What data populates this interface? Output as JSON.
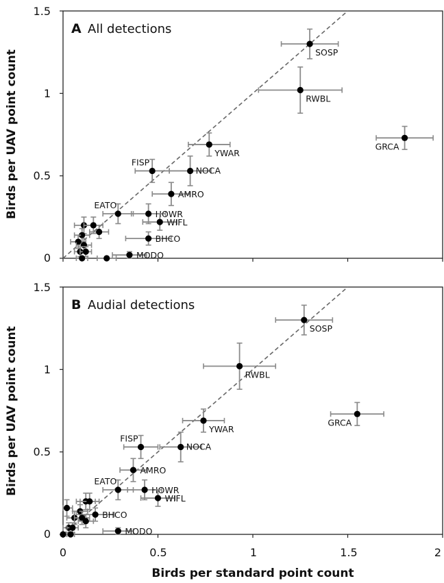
{
  "chart_data": [
    {
      "type": "scatter",
      "panel": "A",
      "title": "All detections",
      "xlabel": "",
      "ylabel": "Birds per UAV point count",
      "xlim": [
        0,
        2
      ],
      "ylim": [
        0,
        1.5
      ],
      "x_ticks": [],
      "y_ticks": [
        "0",
        "0.5",
        "1",
        "1.5"
      ],
      "reference_line": "1:1 dashed",
      "points": [
        {
          "label": "SOSP",
          "x": 1.3,
          "y": 1.3,
          "xerr": 0.15,
          "yerr": 0.09
        },
        {
          "label": "RWBL",
          "x": 1.25,
          "y": 1.02,
          "xerr": 0.22,
          "yerr": 0.14
        },
        {
          "label": "GRCA",
          "x": 1.8,
          "y": 0.73,
          "xerr": 0.15,
          "yerr": 0.07
        },
        {
          "label": "YWAR",
          "x": 0.77,
          "y": 0.69,
          "xerr": 0.11,
          "yerr": 0.07
        },
        {
          "label": "FISP",
          "x": 0.47,
          "y": 0.53,
          "xerr": 0.09,
          "yerr": 0.07
        },
        {
          "label": "NOCA",
          "x": 0.67,
          "y": 0.53,
          "xerr": 0.11,
          "yerr": 0.09
        },
        {
          "label": "AMRO",
          "x": 0.57,
          "y": 0.39,
          "xerr": 0.1,
          "yerr": 0.07
        },
        {
          "label": "EATO",
          "x": 0.29,
          "y": 0.27,
          "xerr": 0.08,
          "yerr": 0.06
        },
        {
          "label": "HOWR",
          "x": 0.45,
          "y": 0.27,
          "xerr": 0.09,
          "yerr": 0.06
        },
        {
          "label": "WIFL",
          "x": 0.51,
          "y": 0.22,
          "xerr": 0.09,
          "yerr": 0.05
        },
        {
          "label": "BHCO",
          "x": 0.45,
          "y": 0.12,
          "xerr": 0.12,
          "yerr": 0.04
        },
        {
          "label": "MODO",
          "x": 0.35,
          "y": 0.02,
          "xerr": 0.09,
          "yerr": 0.02
        },
        {
          "label": "",
          "x": 0.11,
          "y": 0.2,
          "xerr": 0.05,
          "yerr": 0.05
        },
        {
          "label": "",
          "x": 0.16,
          "y": 0.2,
          "xerr": 0.05,
          "yerr": 0.05
        },
        {
          "label": "",
          "x": 0.19,
          "y": 0.16,
          "xerr": 0.05,
          "yerr": 0.04
        },
        {
          "label": "",
          "x": 0.1,
          "y": 0.14,
          "xerr": 0.04,
          "yerr": 0.04
        },
        {
          "label": "",
          "x": 0.08,
          "y": 0.1,
          "xerr": 0.04,
          "yerr": 0.04
        },
        {
          "label": "",
          "x": 0.11,
          "y": 0.08,
          "xerr": 0.04,
          "yerr": 0.04
        },
        {
          "label": "",
          "x": 0.09,
          "y": 0.04,
          "xerr": 0.03,
          "yerr": 0.03
        },
        {
          "label": "",
          "x": 0.12,
          "y": 0.04,
          "xerr": 0.03,
          "yerr": 0.03
        },
        {
          "label": "",
          "x": 0.1,
          "y": 0.0,
          "xerr": 0.03,
          "yerr": 0.0
        },
        {
          "label": "",
          "x": 0.23,
          "y": 0.0,
          "xerr": 0.05,
          "yerr": 0.0
        }
      ]
    },
    {
      "type": "scatter",
      "panel": "B",
      "title": "Audial detections",
      "xlabel": "Birds per standard point count",
      "ylabel": "Birds per UAV point count",
      "xlim": [
        0,
        2
      ],
      "ylim": [
        0,
        1.5
      ],
      "x_ticks": [
        "0",
        "0.5",
        "1",
        "1.5",
        "2"
      ],
      "y_ticks": [
        "0",
        "0.5",
        "1",
        "1.5"
      ],
      "reference_line": "1:1 dashed",
      "points": [
        {
          "label": "SOSP",
          "x": 1.27,
          "y": 1.3,
          "xerr": 0.15,
          "yerr": 0.09
        },
        {
          "label": "RWBL",
          "x": 0.93,
          "y": 1.02,
          "xerr": 0.19,
          "yerr": 0.14
        },
        {
          "label": "GRCA",
          "x": 1.55,
          "y": 0.73,
          "xerr": 0.14,
          "yerr": 0.07
        },
        {
          "label": "YWAR",
          "x": 0.74,
          "y": 0.69,
          "xerr": 0.11,
          "yerr": 0.07
        },
        {
          "label": "FISP",
          "x": 0.41,
          "y": 0.53,
          "xerr": 0.09,
          "yerr": 0.07
        },
        {
          "label": "NOCA",
          "x": 0.62,
          "y": 0.53,
          "xerr": 0.11,
          "yerr": 0.09
        },
        {
          "label": "AMRO",
          "x": 0.37,
          "y": 0.39,
          "xerr": 0.07,
          "yerr": 0.07
        },
        {
          "label": "EATO",
          "x": 0.29,
          "y": 0.27,
          "xerr": 0.08,
          "yerr": 0.06
        },
        {
          "label": "HOWR",
          "x": 0.43,
          "y": 0.27,
          "xerr": 0.09,
          "yerr": 0.06
        },
        {
          "label": "WIFL",
          "x": 0.5,
          "y": 0.22,
          "xerr": 0.09,
          "yerr": 0.05
        },
        {
          "label": "BHCO",
          "x": 0.17,
          "y": 0.12,
          "xerr": 0.1,
          "yerr": 0.04
        },
        {
          "label": "MODO",
          "x": 0.29,
          "y": 0.02,
          "xerr": 0.08,
          "yerr": 0.02
        },
        {
          "label": "",
          "x": 0.02,
          "y": 0.16,
          "xerr": 0.03,
          "yerr": 0.05
        },
        {
          "label": "",
          "x": 0.12,
          "y": 0.2,
          "xerr": 0.05,
          "yerr": 0.05
        },
        {
          "label": "",
          "x": 0.14,
          "y": 0.2,
          "xerr": 0.05,
          "yerr": 0.05
        },
        {
          "label": "",
          "x": 0.09,
          "y": 0.14,
          "xerr": 0.04,
          "yerr": 0.04
        },
        {
          "label": "",
          "x": 0.06,
          "y": 0.1,
          "xerr": 0.04,
          "yerr": 0.04
        },
        {
          "label": "",
          "x": 0.1,
          "y": 0.1,
          "xerr": 0.04,
          "yerr": 0.04
        },
        {
          "label": "",
          "x": 0.12,
          "y": 0.08,
          "xerr": 0.04,
          "yerr": 0.04
        },
        {
          "label": "",
          "x": 0.03,
          "y": 0.04,
          "xerr": 0.03,
          "yerr": 0.03
        },
        {
          "label": "",
          "x": 0.05,
          "y": 0.04,
          "xerr": 0.03,
          "yerr": 0.03
        },
        {
          "label": "",
          "x": 0.0,
          "y": 0.0,
          "xerr": 0.02,
          "yerr": 0.0
        },
        {
          "label": "",
          "x": 0.04,
          "y": 0.0,
          "xerr": 0.02,
          "yerr": 0.0
        }
      ]
    }
  ]
}
